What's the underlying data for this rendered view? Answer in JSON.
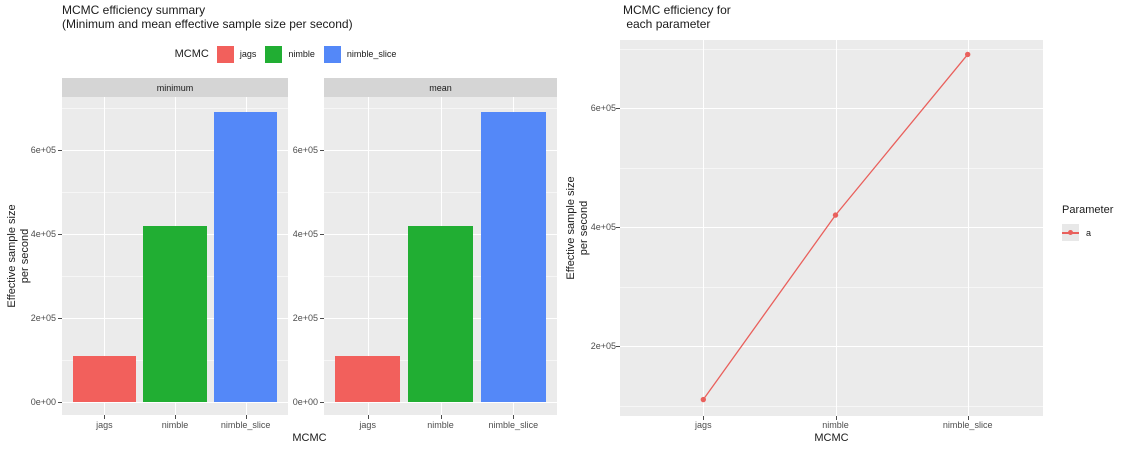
{
  "page": {
    "background": "#ffffff",
    "panel_bg": "#ebebeb",
    "strip_bg": "#d5d5d5",
    "gridline_color": "#ffffff",
    "tick_text_color": "#4d4d4d",
    "title_text_color": "#1a1a1a"
  },
  "chart_data": [
    {
      "type": "bar",
      "title_lines": [
        "MCMC efficiency summary",
        "(Minimum and mean effective sample size per second)"
      ],
      "facets": [
        "minimum",
        "mean"
      ],
      "categories": [
        "jags",
        "nimble",
        "nimble_slice"
      ],
      "series": [
        {
          "name": "minimum",
          "values": [
            110000,
            420000,
            690000
          ]
        },
        {
          "name": "mean",
          "values": [
            110000,
            420000,
            690000
          ]
        }
      ],
      "bar_colors": [
        "#F2605C",
        "#21AE33",
        "#5488F8"
      ],
      "legend": {
        "title": "MCMC",
        "position": "top",
        "items": [
          {
            "label": "jags",
            "color": "#F2605C"
          },
          {
            "label": "nimble",
            "color": "#21AE33"
          },
          {
            "label": "nimble_slice",
            "color": "#5488F8"
          }
        ]
      },
      "xlabel": "MCMC",
      "ylabel_lines": [
        "Effective sample size",
        "per second"
      ],
      "yticks": [
        {
          "value": 0,
          "label": "0e+00"
        },
        {
          "value": 200000,
          "label": "2e+05"
        },
        {
          "value": 400000,
          "label": "4e+05"
        },
        {
          "value": 600000,
          "label": "6e+05"
        }
      ],
      "minor_ticks": [
        100000,
        300000,
        500000,
        700000
      ],
      "ylim": [
        -31000,
        726000
      ],
      "grid": true,
      "legend_position": "top"
    },
    {
      "type": "line",
      "title_lines": [
        "MCMC efficiency for",
        " each parameter"
      ],
      "categories": [
        "jags",
        "nimble",
        "nimble_slice"
      ],
      "series": [
        {
          "name": "a",
          "values": [
            110000,
            420000,
            690000
          ],
          "color": "#E9605C"
        }
      ],
      "legend": {
        "title": "Parameter",
        "position": "right",
        "items": [
          {
            "label": "a",
            "color": "#E9605C"
          }
        ]
      },
      "xlabel": "MCMC",
      "ylabel_lines": [
        "Effective sample size",
        "per second"
      ],
      "yticks": [
        {
          "value": 200000,
          "label": "2e+05"
        },
        {
          "value": 400000,
          "label": "4e+05"
        },
        {
          "value": 600000,
          "label": "6e+05"
        }
      ],
      "minor_ticks": [
        100000,
        300000,
        500000,
        700000
      ],
      "ylim": [
        81000,
        719000
      ],
      "grid": true,
      "legend_position": "right"
    }
  ]
}
